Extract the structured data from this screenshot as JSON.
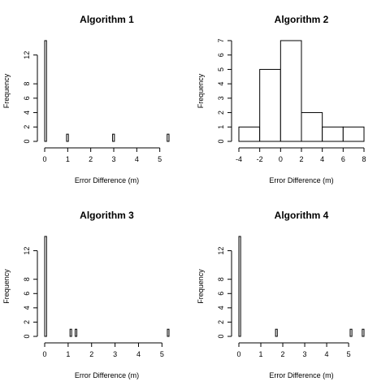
{
  "chart_data": [
    {
      "type": "histogram",
      "title": "Algorithm 1",
      "xlabel": "Error Difference (m)",
      "ylabel": "Frequency",
      "xlim": [
        0,
        5.4
      ],
      "ylim": [
        0,
        14
      ],
      "xticks": [
        "0",
        "1",
        "2",
        "3",
        "4",
        "5"
      ],
      "yticks": [
        "0",
        "2",
        "4",
        "6",
        "8",
        "12"
      ],
      "bars": [
        {
          "x0": 0,
          "x1": 0.08,
          "count": 14
        },
        {
          "x0": 0.95,
          "x1": 1.03,
          "count": 1
        },
        {
          "x0": 2.95,
          "x1": 3.03,
          "count": 1
        },
        {
          "x0": 5.32,
          "x1": 5.4,
          "count": 1
        }
      ]
    },
    {
      "type": "histogram",
      "title": "Algorithm 2",
      "xlabel": "Error Difference (m)",
      "ylabel": "Frequency",
      "xlim": [
        -4,
        8
      ],
      "ylim": [
        0,
        7
      ],
      "xticks": [
        "-4",
        "-2",
        "0",
        "2",
        "4",
        "6",
        "8"
      ],
      "yticks": [
        "0",
        "1",
        "2",
        "3",
        "4",
        "5",
        "6",
        "7"
      ],
      "bars": [
        {
          "x0": -4,
          "x1": -2,
          "count": 1
        },
        {
          "x0": -2,
          "x1": 0,
          "count": 5
        },
        {
          "x0": 0,
          "x1": 2,
          "count": 7
        },
        {
          "x0": 2,
          "x1": 4,
          "count": 2
        },
        {
          "x0": 4,
          "x1": 6,
          "count": 1
        },
        {
          "x0": 6,
          "x1": 8,
          "count": 1
        }
      ]
    },
    {
      "type": "histogram",
      "title": "Algorithm 3",
      "xlabel": "Error Difference (m)",
      "ylabel": "Frequency",
      "xlim": [
        0,
        5.3
      ],
      "ylim": [
        0,
        14
      ],
      "xticks": [
        "0",
        "1",
        "2",
        "3",
        "4",
        "5"
      ],
      "yticks": [
        "0",
        "2",
        "4",
        "6",
        "8",
        "12"
      ],
      "bars": [
        {
          "x0": 0,
          "x1": 0.08,
          "count": 14
        },
        {
          "x0": 1.08,
          "x1": 1.15,
          "count": 1
        },
        {
          "x0": 1.3,
          "x1": 1.37,
          "count": 1
        },
        {
          "x0": 5.23,
          "x1": 5.3,
          "count": 1
        }
      ]
    },
    {
      "type": "histogram",
      "title": "Algorithm 4",
      "xlabel": "Error Difference (m)",
      "ylabel": "Frequency",
      "xlim": [
        0,
        5.7
      ],
      "ylim": [
        0,
        14
      ],
      "xticks": [
        "0",
        "1",
        "2",
        "3",
        "4",
        "5"
      ],
      "yticks": [
        "0",
        "2",
        "4",
        "6",
        "8",
        "12"
      ],
      "bars": [
        {
          "x0": 0,
          "x1": 0.08,
          "count": 14
        },
        {
          "x0": 1.67,
          "x1": 1.75,
          "count": 1
        },
        {
          "x0": 5.07,
          "x1": 5.15,
          "count": 1
        },
        {
          "x0": 5.62,
          "x1": 5.7,
          "count": 1
        }
      ]
    }
  ]
}
